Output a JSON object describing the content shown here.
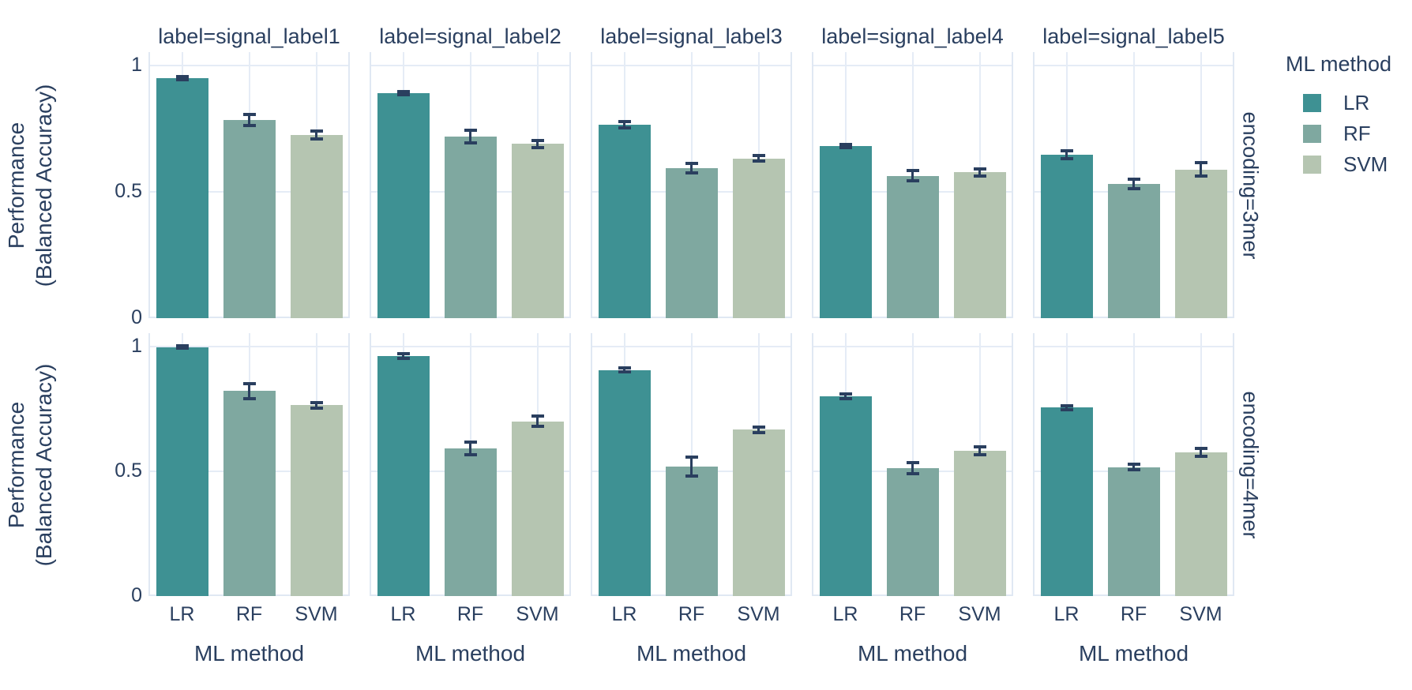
{
  "chart_data": {
    "type": "bar",
    "title": "",
    "categories": [
      "LR",
      "RF",
      "SVM"
    ],
    "col_facets": [
      "label=signal_label1",
      "label=signal_label2",
      "label=signal_label3",
      "label=signal_label4",
      "label=signal_label5"
    ],
    "row_facets": [
      "encoding=3mer",
      "encoding=4mer"
    ],
    "xlabel": "ML method",
    "ylabel_lines": [
      "Performance",
      "(Balanced Accuracy)"
    ],
    "ylim": [
      0,
      1.05
    ],
    "yticks": [
      {
        "value": 0,
        "label": "0"
      },
      {
        "value": 0.5,
        "label": "0.5"
      },
      {
        "value": 1,
        "label": "1"
      }
    ],
    "grid": true,
    "legend_position": "top-right",
    "legend": {
      "title": "ML method",
      "entries": [
        {
          "label": "LR",
          "color": "#3e9193"
        },
        {
          "label": "RF",
          "color": "#7fa8a0"
        },
        {
          "label": "SVM",
          "color": "#b5c5b1"
        }
      ]
    },
    "error_bar_color": "#2a3f5f",
    "text_color": "#2a3f5f",
    "gridline_color": "#e5ecf6",
    "panels": [
      {
        "row": "encoding=3mer",
        "col": "label=signal_label1",
        "values": [
          0.95,
          0.785,
          0.725
        ],
        "errors": [
          0.006,
          0.022,
          0.015
        ]
      },
      {
        "row": "encoding=3mer",
        "col": "label=signal_label2",
        "values": [
          0.89,
          0.72,
          0.69
        ],
        "errors": [
          0.006,
          0.025,
          0.014
        ]
      },
      {
        "row": "encoding=3mer",
        "col": "label=signal_label3",
        "values": [
          0.765,
          0.593,
          0.632
        ],
        "errors": [
          0.013,
          0.018,
          0.011
        ]
      },
      {
        "row": "encoding=3mer",
        "col": "label=signal_label4",
        "values": [
          0.681,
          0.563,
          0.578
        ],
        "errors": [
          0.006,
          0.02,
          0.014
        ]
      },
      {
        "row": "encoding=3mer",
        "col": "label=signal_label5",
        "values": [
          0.648,
          0.531,
          0.589
        ],
        "errors": [
          0.016,
          0.019,
          0.026
        ]
      },
      {
        "row": "encoding=4mer",
        "col": "label=signal_label1",
        "values": [
          0.998,
          0.822,
          0.765
        ],
        "errors": [
          0.005,
          0.03,
          0.011
        ]
      },
      {
        "row": "encoding=4mer",
        "col": "label=signal_label2",
        "values": [
          0.962,
          0.592,
          0.7
        ],
        "errors": [
          0.008,
          0.024,
          0.021
        ]
      },
      {
        "row": "encoding=4mer",
        "col": "label=signal_label3",
        "values": [
          0.906,
          0.519,
          0.667
        ],
        "errors": [
          0.008,
          0.038,
          0.011
        ]
      },
      {
        "row": "encoding=4mer",
        "col": "label=signal_label4",
        "values": [
          0.8,
          0.512,
          0.582
        ],
        "errors": [
          0.01,
          0.022,
          0.016
        ]
      },
      {
        "row": "encoding=4mer",
        "col": "label=signal_label5",
        "values": [
          0.756,
          0.517,
          0.576
        ],
        "errors": [
          0.008,
          0.012,
          0.015
        ]
      }
    ]
  }
}
